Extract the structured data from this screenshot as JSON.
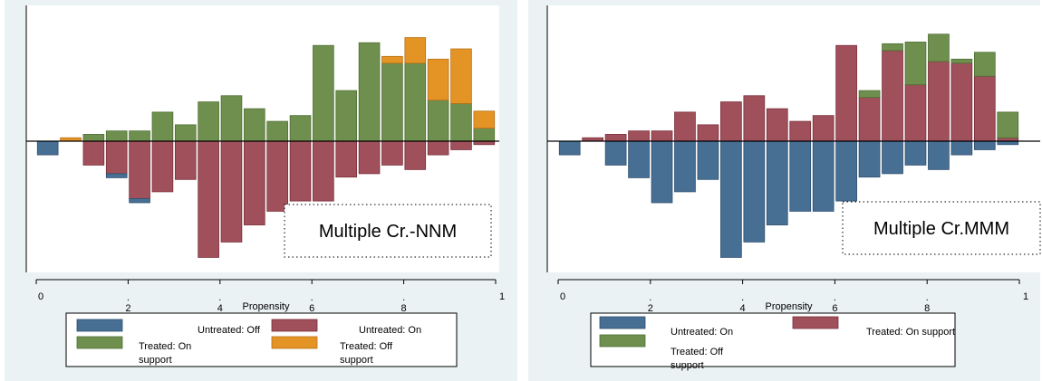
{
  "colors": {
    "background": "#ffffff",
    "panel": "#eaf2f3",
    "untreated_off": "#476f94",
    "untreated_on": "#a0505b",
    "treated_on": "#6f8f4f",
    "treated_off": "#e49424",
    "bar_edge_blue": "#2f4f6f",
    "bar_edge_red": "#7a2f3a",
    "bar_edge_green": "#4f6f33",
    "bar_edge_orange": "#b8701a"
  },
  "chart_data": [
    {
      "type": "bar",
      "annotation": "Multiple Cr.-NNM",
      "xlabel": "Propensity",
      "xlim": [
        0,
        1
      ],
      "ylim": [
        -0.36,
        0.36
      ],
      "grid": false,
      "legend_placement": "bottom",
      "x_ticks": [
        {
          "value": 0,
          "label": "0"
        },
        {
          "value": 0.2,
          "label": "2"
        },
        {
          "value": 0.4,
          "label": "4"
        },
        {
          "value": 0.6,
          "label": "6"
        },
        {
          "value": 0.8,
          "label": "8"
        },
        {
          "value": 1,
          "label": "1"
        }
      ],
      "legend": [
        {
          "label": "Untreated: Off",
          "color_key": "untreated_off"
        },
        {
          "label": "Untreated: On",
          "color_key": "untreated_on"
        },
        {
          "label": "Treated: On support",
          "color_key": "treated_on"
        },
        {
          "label": "Treated: Off support",
          "color_key": "treated_off"
        }
      ],
      "bar_width": 0.045,
      "x": [
        0.025,
        0.075,
        0.125,
        0.175,
        0.225,
        0.275,
        0.325,
        0.375,
        0.425,
        0.475,
        0.525,
        0.575,
        0.625,
        0.675,
        0.725,
        0.775,
        0.825,
        0.875,
        0.925,
        0.975
      ],
      "series": [
        {
          "name": "Treated: On support",
          "color_key": "treated_on",
          "side": "up",
          "base": "zero",
          "values": [
            0,
            0,
            0.02,
            0.03,
            0.03,
            0.085,
            0.048,
            0.115,
            0.133,
            0.095,
            0.058,
            0.075,
            0.28,
            0.148,
            0.288,
            0.228,
            0.228,
            0.12,
            0.11,
            0.038
          ]
        },
        {
          "name": "Treated: Off support",
          "color_key": "treated_off",
          "side": "up",
          "base": "stack",
          "values": [
            0,
            0.01,
            0,
            0,
            0,
            0,
            0,
            0,
            0,
            0,
            0,
            0,
            0,
            0,
            0,
            0.02,
            0.075,
            0.12,
            0.16,
            0.05
          ]
        },
        {
          "name": "Untreated: On",
          "color_key": "untreated_on",
          "side": "down",
          "base": "zero",
          "values": [
            0,
            0,
            0.07,
            0.095,
            0.168,
            0.148,
            0.112,
            0.34,
            0.295,
            0.245,
            0.205,
            0.175,
            0.175,
            0.105,
            0.095,
            0.07,
            0.083,
            0.04,
            0.025,
            0.01
          ]
        },
        {
          "name": "Untreated: Off",
          "color_key": "untreated_off",
          "side": "down",
          "base": "stack",
          "values": [
            0.04,
            0,
            0,
            0.012,
            0.012,
            0,
            0,
            0,
            0,
            0,
            0,
            0,
            0,
            0,
            0,
            0,
            0,
            0,
            0,
            0
          ]
        }
      ]
    },
    {
      "type": "bar",
      "annotation": "Multiple Cr.MMM",
      "xlabel": "Propensity",
      "xlim": [
        0,
        1
      ],
      "ylim": [
        -0.36,
        0.36
      ],
      "grid": false,
      "legend_placement": "bottom",
      "x_ticks": [
        {
          "value": 0,
          "label": "0"
        },
        {
          "value": 0.2,
          "label": "2"
        },
        {
          "value": 0.4,
          "label": "4"
        },
        {
          "value": 0.6,
          "label": "6"
        },
        {
          "value": 0.8,
          "label": "8"
        },
        {
          "value": 1,
          "label": "1"
        }
      ],
      "legend": [
        {
          "label": "Untreated: On",
          "color_key": "untreated_off"
        },
        {
          "label": "Treated: On support",
          "color_key": "untreated_on"
        },
        {
          "label": "Treated: Off support",
          "color_key": "treated_on"
        }
      ],
      "bar_width": 0.045,
      "x": [
        0.025,
        0.075,
        0.125,
        0.175,
        0.225,
        0.275,
        0.325,
        0.375,
        0.425,
        0.475,
        0.525,
        0.575,
        0.625,
        0.675,
        0.725,
        0.775,
        0.825,
        0.875,
        0.925,
        0.975
      ],
      "series": [
        {
          "name": "Treated: On support",
          "color_key": "untreated_on",
          "side": "up",
          "base": "zero",
          "values": [
            0,
            0.01,
            0.02,
            0.03,
            0.03,
            0.085,
            0.048,
            0.115,
            0.133,
            0.095,
            0.058,
            0.075,
            0.28,
            0.128,
            0.265,
            0.165,
            0.233,
            0.228,
            0.19,
            0.01
          ]
        },
        {
          "name": "Treated: Off support",
          "color_key": "treated_on",
          "side": "up",
          "base": "stack",
          "values": [
            0,
            0,
            0,
            0,
            0,
            0,
            0,
            0,
            0,
            0,
            0,
            0,
            0,
            0.02,
            0.02,
            0.125,
            0.08,
            0.012,
            0.07,
            0.075
          ]
        },
        {
          "name": "Untreated: On",
          "color_key": "untreated_off",
          "side": "down",
          "base": "zero",
          "values": [
            0.04,
            0,
            0.07,
            0.107,
            0.18,
            0.148,
            0.112,
            0.34,
            0.295,
            0.245,
            0.205,
            0.205,
            0.175,
            0.105,
            0.095,
            0.07,
            0.083,
            0.04,
            0.025,
            0.01
          ]
        }
      ]
    }
  ]
}
